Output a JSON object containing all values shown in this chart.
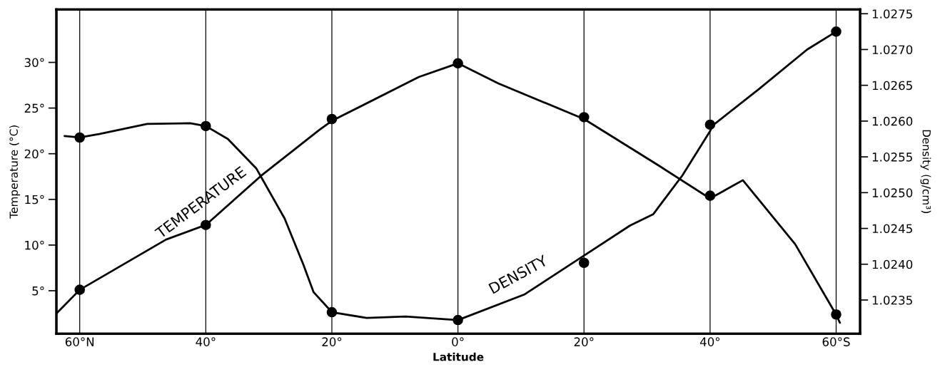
{
  "chart_data": {
    "type": "line",
    "xlabel": "Latitude",
    "ylabel": "Temperature (°C)",
    "y2label": "Density (g/cm³)",
    "xlim": [
      -63.7,
      63.8
    ],
    "xticks": [
      {
        "value": -60,
        "label": "60°N"
      },
      {
        "value": -40,
        "label": "40°"
      },
      {
        "value": -20,
        "label": "20°"
      },
      {
        "value": 0,
        "label": "0°"
      },
      {
        "value": 20,
        "label": "20°"
      },
      {
        "value": 40,
        "label": "40°"
      },
      {
        "value": 60,
        "label": "60°S"
      }
    ],
    "ylim": [
      0.3,
      35.8
    ],
    "yticks": [
      {
        "value": 5,
        "label": "5°"
      },
      {
        "value": 10,
        "label": "10°"
      },
      {
        "value": 15,
        "label": "15°"
      },
      {
        "value": 20,
        "label": "20°"
      },
      {
        "value": 25,
        "label": "25°"
      },
      {
        "value": 30,
        "label": "30°"
      }
    ],
    "y2lim": [
      1.02303,
      1.02756
    ],
    "y2ticks": [
      {
        "value": 1.0235,
        "label": "1.0235"
      },
      {
        "value": 1.024,
        "label": "1.0240"
      },
      {
        "value": 1.0245,
        "label": "1.0245"
      },
      {
        "value": 1.025,
        "label": "1.0250"
      },
      {
        "value": 1.0255,
        "label": "1.0255"
      },
      {
        "value": 1.026,
        "label": "1.0260"
      },
      {
        "value": 1.0265,
        "label": "1.0265"
      },
      {
        "value": 1.027,
        "label": "1.0270"
      },
      {
        "value": 1.0275,
        "label": "1.0275"
      }
    ],
    "grid": "x",
    "legend": false,
    "series": [
      {
        "name": "TEMPERATURE",
        "marker": "none",
        "color": "#000000",
        "x": [
          -63.7,
          -60,
          -46.3,
          -40,
          -31.2,
          -22.0,
          -20,
          -6.2,
          0,
          6.4,
          20,
          31.4,
          40,
          45.2,
          53.5,
          59.9,
          60.6
        ],
        "values": [
          2.5,
          5.1,
          10.6,
          12.2,
          17.6,
          22.6,
          23.6,
          28.4,
          29.9,
          27.7,
          23.8,
          18.9,
          15.1,
          17.1,
          10.1,
          2.5,
          1.5
        ]
      },
      {
        "name": "DENSITY",
        "axis": "y2",
        "marker": "none",
        "color": "#000000",
        "x": [
          -62.4,
          -60,
          -56.8,
          -49.3,
          -42.5,
          -40,
          -36.5,
          -32.0,
          -27.5,
          -24.5,
          -22.9,
          -20,
          -14.5,
          -8.3,
          0,
          10.6,
          20,
          27.3,
          31.0,
          35.6,
          40,
          40.3,
          47.8,
          55.4,
          60
        ],
        "values": [
          1.02579,
          1.02577,
          1.02582,
          1.02596,
          1.02597,
          1.02593,
          1.02575,
          1.02534,
          1.02464,
          1.02399,
          1.02361,
          1.02333,
          1.02325,
          1.02327,
          1.02322,
          1.02358,
          1.02412,
          1.02454,
          1.0247,
          1.02524,
          1.02586,
          1.02593,
          1.02645,
          1.027,
          1.02725
        ]
      },
      {
        "type": "scatter",
        "marker": "circle",
        "color": "#000000",
        "x": [
          -60,
          -40,
          -20,
          0,
          20,
          40,
          60
        ],
        "values": [
          5.1,
          12.2,
          23.8,
          29.9,
          24.0,
          15.4,
          2.4
        ]
      },
      {
        "type": "scatter",
        "axis": "y2",
        "marker": "circle",
        "color": "#000000",
        "x": [
          -60,
          -40,
          -20,
          0,
          20,
          40,
          60
        ],
        "values": [
          1.02577,
          1.02593,
          1.02333,
          1.02322,
          1.02402,
          1.02595,
          1.02725
        ]
      }
    ]
  }
}
